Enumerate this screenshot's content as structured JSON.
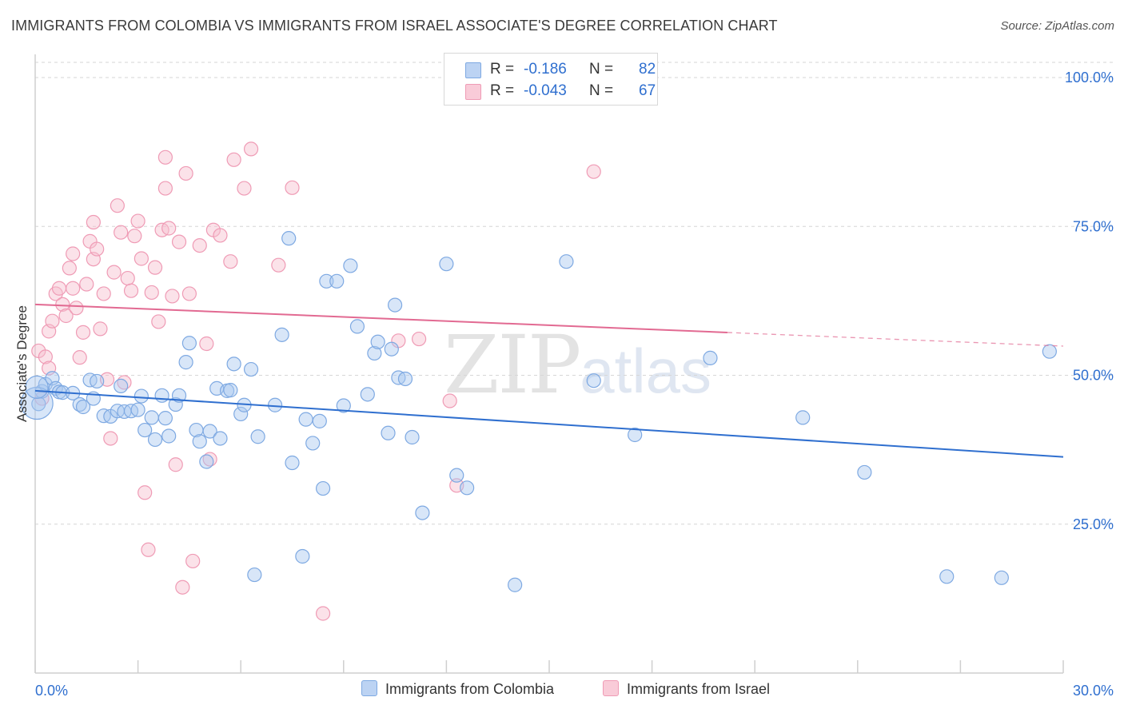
{
  "title": "IMMIGRANTS FROM COLOMBIA VS IMMIGRANTS FROM ISRAEL ASSOCIATE'S DEGREE CORRELATION CHART",
  "source": "Source: ZipAtlas.com",
  "watermark": {
    "zip": "ZIP",
    "atlas": "atlas"
  },
  "colors": {
    "colombia_fill": "#a9c7f0",
    "colombia_stroke": "#7ea9e2",
    "colombia_line": "#2f6fcf",
    "israel_fill": "#f7bfcf",
    "israel_stroke": "#ef9bb5",
    "israel_line": "#e26a92",
    "axis_text": "#2f6fcf",
    "grid": "#d6d6d6"
  },
  "stats": [
    {
      "r_label": "R =",
      "r_value": "-0.186",
      "n_label": "N =",
      "n_value": "82",
      "series": "colombia"
    },
    {
      "r_label": "R =",
      "r_value": "-0.043",
      "n_label": "N =",
      "n_value": "67",
      "series": "israel"
    }
  ],
  "legend": [
    {
      "label": "Immigrants from Colombia",
      "series": "colombia"
    },
    {
      "label": "Immigrants from Israel",
      "series": "israel"
    }
  ],
  "chart_data": {
    "type": "scatter",
    "title": "IMMIGRANTS FROM COLOMBIA VS IMMIGRANTS FROM ISRAEL ASSOCIATE'S DEGREE CORRELATION CHART",
    "xlabel": "",
    "ylabel": "Associate's Degree",
    "xlim": [
      0,
      30
    ],
    "ylim": [
      0,
      100
    ],
    "x_tick_labels": [
      "0.0%",
      "30.0%"
    ],
    "y_tick_labels": [
      "100.0%",
      "75.0%",
      "50.0%",
      "25.0%"
    ],
    "y_ticks": [
      100,
      75,
      50,
      25
    ],
    "x_minor_ticks": [
      0,
      3,
      6,
      9,
      12,
      15,
      18,
      21,
      24,
      27,
      30
    ],
    "grid": true,
    "legend_position": "bottom-center",
    "series": [
      {
        "name": "Immigrants from Colombia",
        "color": "#a9c7f0",
        "trend": {
          "x": [
            0,
            30
          ],
          "y": [
            47.4,
            36.3
          ],
          "dashed_from": null
        },
        "points": [
          [
            0.1,
            45.2
          ],
          [
            0.2,
            47.3
          ],
          [
            0.3,
            48.5
          ],
          [
            0.5,
            49.5
          ],
          [
            0.6,
            47.8
          ],
          [
            0.7,
            47.2
          ],
          [
            0.8,
            47.1
          ],
          [
            1.1,
            47.0
          ],
          [
            1.3,
            45.1
          ],
          [
            1.4,
            44.7
          ],
          [
            1.6,
            49.2
          ],
          [
            1.7,
            46.1
          ],
          [
            1.8,
            49.0
          ],
          [
            2.0,
            43.2
          ],
          [
            2.2,
            43.1
          ],
          [
            2.4,
            44.0
          ],
          [
            2.5,
            48.2
          ],
          [
            2.6,
            43.9
          ],
          [
            2.8,
            44.0
          ],
          [
            3.0,
            44.2
          ],
          [
            3.1,
            46.5
          ],
          [
            3.2,
            40.8
          ],
          [
            3.4,
            42.9
          ],
          [
            3.5,
            39.2
          ],
          [
            3.7,
            46.6
          ],
          [
            3.8,
            42.8
          ],
          [
            3.9,
            39.8
          ],
          [
            4.1,
            45.1
          ],
          [
            4.2,
            46.6
          ],
          [
            4.4,
            52.2
          ],
          [
            4.5,
            55.4
          ],
          [
            4.7,
            40.8
          ],
          [
            4.8,
            38.9
          ],
          [
            5.0,
            35.5
          ],
          [
            5.1,
            40.6
          ],
          [
            5.3,
            47.8
          ],
          [
            5.4,
            39.4
          ],
          [
            5.6,
            47.4
          ],
          [
            5.7,
            47.5
          ],
          [
            5.8,
            51.9
          ],
          [
            6.0,
            43.5
          ],
          [
            6.1,
            45.0
          ],
          [
            6.3,
            51.0
          ],
          [
            6.4,
            16.5
          ],
          [
            6.5,
            39.7
          ],
          [
            7.0,
            45.0
          ],
          [
            7.2,
            56.8
          ],
          [
            7.4,
            73.0
          ],
          [
            7.5,
            35.3
          ],
          [
            7.8,
            19.6
          ],
          [
            7.9,
            42.6
          ],
          [
            8.1,
            38.6
          ],
          [
            8.3,
            42.3
          ],
          [
            8.4,
            31.0
          ],
          [
            8.5,
            65.8
          ],
          [
            8.8,
            65.8
          ],
          [
            9.0,
            44.9
          ],
          [
            9.2,
            68.4
          ],
          [
            9.4,
            58.2
          ],
          [
            9.7,
            46.8
          ],
          [
            9.9,
            53.7
          ],
          [
            10.0,
            55.6
          ],
          [
            10.3,
            40.3
          ],
          [
            10.4,
            54.4
          ],
          [
            10.5,
            61.8
          ],
          [
            10.6,
            49.6
          ],
          [
            10.8,
            49.4
          ],
          [
            11.0,
            39.6
          ],
          [
            11.3,
            26.9
          ],
          [
            12.0,
            68.7
          ],
          [
            12.3,
            33.2
          ],
          [
            12.6,
            31.1
          ],
          [
            14.0,
            14.8
          ],
          [
            15.5,
            69.1
          ],
          [
            16.3,
            49.1
          ],
          [
            17.5,
            40.0
          ],
          [
            19.7,
            52.9
          ],
          [
            22.4,
            42.9
          ],
          [
            24.2,
            33.7
          ],
          [
            26.6,
            16.2
          ],
          [
            28.2,
            16.0
          ],
          [
            29.6,
            54.0
          ]
        ]
      },
      {
        "name": "Immigrants from Israel",
        "color": "#f7bfcf",
        "trend": {
          "x": [
            0,
            30
          ],
          "y": [
            61.9,
            54.9
          ],
          "dashed_from": 20.2
        },
        "points": [
          [
            0.1,
            54.1
          ],
          [
            0.2,
            46.1
          ],
          [
            0.3,
            53.1
          ],
          [
            0.4,
            57.4
          ],
          [
            0.4,
            51.2
          ],
          [
            0.5,
            59.1
          ],
          [
            0.6,
            63.7
          ],
          [
            0.7,
            64.6
          ],
          [
            0.8,
            61.9
          ],
          [
            0.9,
            60.0
          ],
          [
            1.0,
            68.0
          ],
          [
            1.1,
            70.4
          ],
          [
            1.1,
            64.6
          ],
          [
            1.2,
            61.3
          ],
          [
            1.3,
            53.0
          ],
          [
            1.4,
            57.2
          ],
          [
            1.5,
            65.3
          ],
          [
            1.6,
            72.5
          ],
          [
            1.7,
            69.5
          ],
          [
            1.7,
            75.7
          ],
          [
            1.8,
            71.2
          ],
          [
            1.9,
            57.8
          ],
          [
            2.0,
            63.7
          ],
          [
            2.1,
            49.3
          ],
          [
            2.2,
            39.4
          ],
          [
            2.3,
            67.3
          ],
          [
            2.4,
            78.5
          ],
          [
            2.5,
            74.0
          ],
          [
            2.6,
            48.8
          ],
          [
            2.7,
            66.3
          ],
          [
            2.8,
            64.2
          ],
          [
            2.9,
            73.4
          ],
          [
            3.0,
            75.9
          ],
          [
            3.1,
            69.6
          ],
          [
            3.2,
            30.3
          ],
          [
            3.3,
            20.7
          ],
          [
            3.4,
            63.9
          ],
          [
            3.5,
            68.1
          ],
          [
            3.6,
            59.0
          ],
          [
            3.7,
            74.4
          ],
          [
            3.8,
            86.6
          ],
          [
            3.8,
            81.4
          ],
          [
            3.9,
            74.7
          ],
          [
            4.0,
            63.3
          ],
          [
            4.1,
            35.0
          ],
          [
            4.2,
            72.4
          ],
          [
            4.3,
            14.4
          ],
          [
            4.4,
            83.9
          ],
          [
            4.5,
            63.7
          ],
          [
            4.6,
            18.8
          ],
          [
            4.8,
            71.8
          ],
          [
            5.0,
            55.3
          ],
          [
            5.1,
            35.9
          ],
          [
            5.2,
            74.4
          ],
          [
            5.4,
            73.5
          ],
          [
            5.7,
            69.1
          ],
          [
            5.8,
            86.2
          ],
          [
            6.1,
            81.4
          ],
          [
            6.3,
            88.0
          ],
          [
            7.1,
            68.5
          ],
          [
            7.5,
            81.5
          ],
          [
            8.4,
            10.0
          ],
          [
            10.6,
            55.8
          ],
          [
            11.2,
            56.1
          ],
          [
            12.1,
            45.7
          ],
          [
            12.3,
            31.5
          ],
          [
            16.3,
            84.2
          ]
        ]
      }
    ]
  }
}
